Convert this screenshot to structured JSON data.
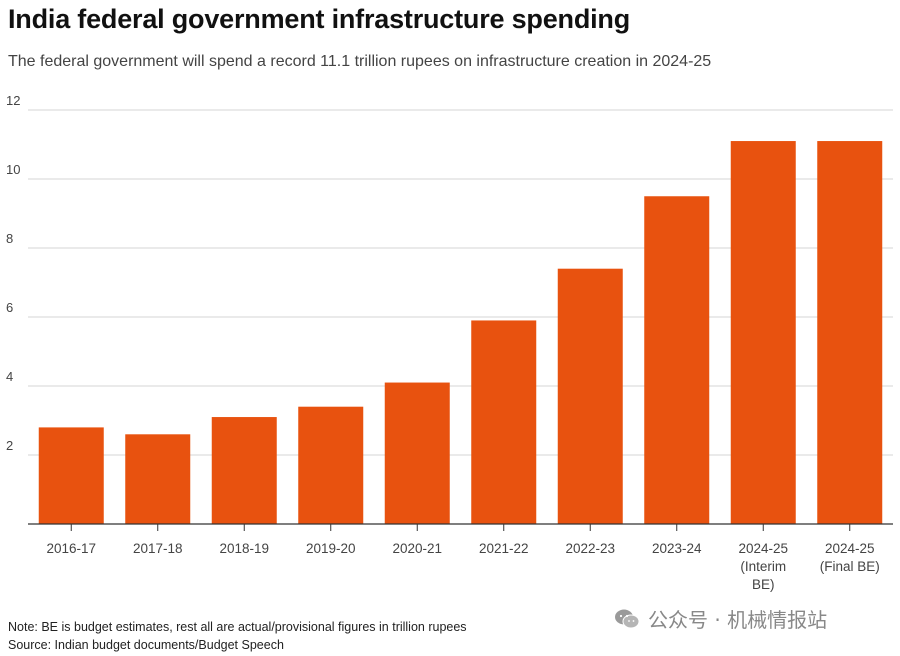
{
  "title": "India federal government infrastructure spending",
  "subtitle": "The federal government will spend a record 11.1 trillion rupees on infrastructure creation in 2024-25",
  "note": "Note: BE is budget estimates, rest all are actual/provisional figures in trillion rupees",
  "source": "Source: Indian budget documents/Budget Speech",
  "watermark": "公众号 · 机械情报站",
  "watermark_icon": "wechat-icon",
  "colors": {
    "bar": "#e8520f",
    "grid": "#d4d4d4",
    "axis": "#333333",
    "tick_text": "#444444"
  },
  "chart_data": {
    "type": "bar",
    "categories": [
      [
        "2016-17"
      ],
      [
        "2017-18"
      ],
      [
        "2018-19"
      ],
      [
        "2019-20"
      ],
      [
        "2020-21"
      ],
      [
        "2021-22"
      ],
      [
        "2022-23"
      ],
      [
        "2023-24"
      ],
      [
        "2024-25",
        "(Interim",
        "BE)"
      ],
      [
        "2024-25",
        "(Final BE)"
      ]
    ],
    "values": [
      2.8,
      2.6,
      3.1,
      3.4,
      4.1,
      5.9,
      7.4,
      9.5,
      11.1,
      11.1
    ],
    "ylim": [
      0,
      12
    ],
    "yticks": [
      2,
      4,
      6,
      8,
      10,
      12
    ],
    "grid": true,
    "xlabel": "",
    "ylabel": ""
  }
}
